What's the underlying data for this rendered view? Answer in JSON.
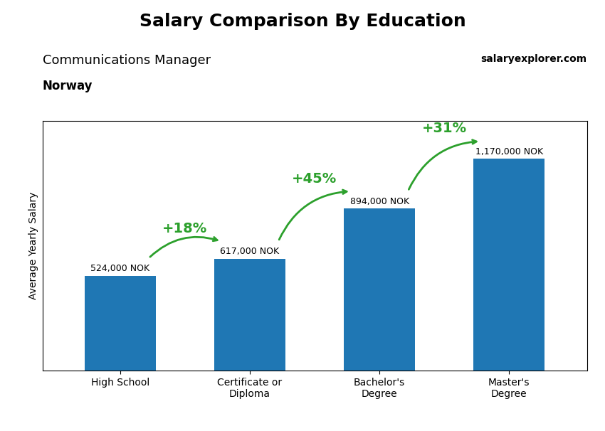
{
  "chart_data": {
    "type": "bar",
    "title": "Salary Comparison By Education",
    "subtitle": "Communications Manager",
    "y_label": "Average Yearly Salary",
    "categories": [
      "High School",
      "Certificate or\nDiploma",
      "Bachelor's\nDegree",
      "Master's\nDegree"
    ],
    "values": [
      524000,
      617000,
      894000,
      1170000
    ],
    "value_labels": [
      "524,000 NOK",
      "617,000 NOK",
      "894,000 NOK",
      "1,170,000 NOK"
    ],
    "data_labels": true,
    "ylim": [
      0,
      1380000
    ],
    "tick_labels": "x",
    "grid": false,
    "annotations": [
      {
        "text": "Norway"
      },
      {
        "text": "salaryexplorer.com"
      },
      {
        "text": "+18%",
        "from": "High School",
        "to": "Certificate or\nDiploma"
      },
      {
        "text": "+45%",
        "from": "Certificate or\nDiploma",
        "to": "Bachelor's\nDegree"
      },
      {
        "text": "+31%",
        "from": "Bachelor's\nDegree",
        "to": "Master's\nDegree"
      }
    ]
  }
}
